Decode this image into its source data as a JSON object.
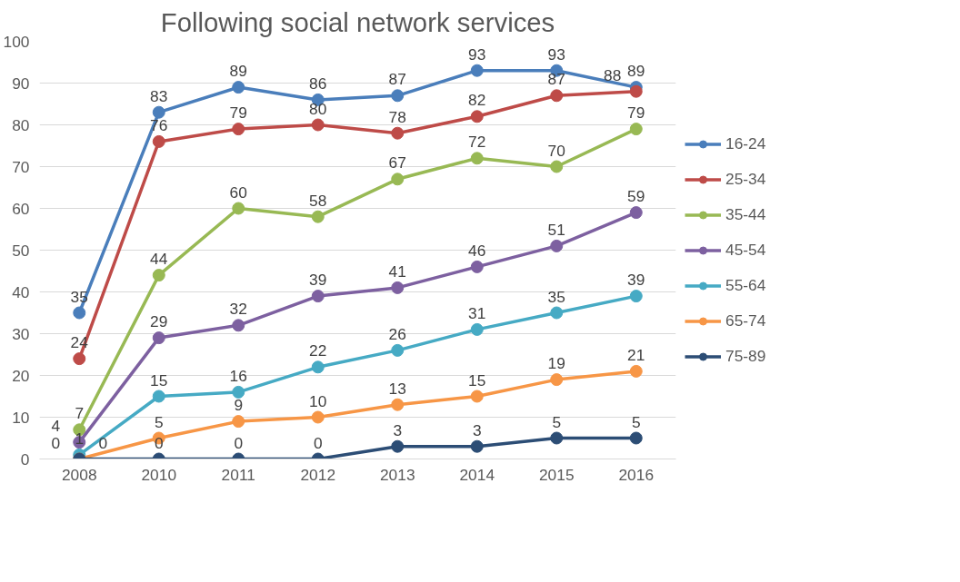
{
  "chart_data": {
    "type": "line",
    "title": "Following social network services",
    "categories": [
      "2008",
      "2010",
      "2011",
      "2012",
      "2013",
      "2014",
      "2015",
      "2016"
    ],
    "series": [
      {
        "name": "16-24",
        "color": "#4a7ebb",
        "values": [
          35,
          83,
          89,
          86,
          87,
          93,
          93,
          89
        ]
      },
      {
        "name": "25-34",
        "color": "#be4b48",
        "values": [
          24,
          76,
          79,
          80,
          78,
          82,
          87,
          88
        ]
      },
      {
        "name": "35-44",
        "color": "#98b954",
        "values": [
          7,
          44,
          60,
          58,
          67,
          72,
          70,
          79
        ]
      },
      {
        "name": "45-54",
        "color": "#7d60a0",
        "values": [
          4,
          29,
          32,
          39,
          41,
          46,
          51,
          59
        ]
      },
      {
        "name": "55-64",
        "color": "#46aac4",
        "values": [
          1,
          15,
          16,
          22,
          26,
          31,
          35,
          39
        ]
      },
      {
        "name": "65-74",
        "color": "#f79646",
        "values": [
          0,
          5,
          9,
          10,
          13,
          15,
          19,
          21
        ]
      },
      {
        "name": "75-89",
        "color": "#2c4d75",
        "values": [
          0,
          0,
          0,
          0,
          3,
          3,
          5,
          5
        ]
      }
    ],
    "ylim": [
      0,
      100
    ],
    "yticks": [
      0,
      10,
      20,
      30,
      40,
      50,
      60,
      70,
      80,
      90,
      100
    ],
    "grid": "y",
    "legend": "right",
    "marker": "circle",
    "data_labels": true
  }
}
